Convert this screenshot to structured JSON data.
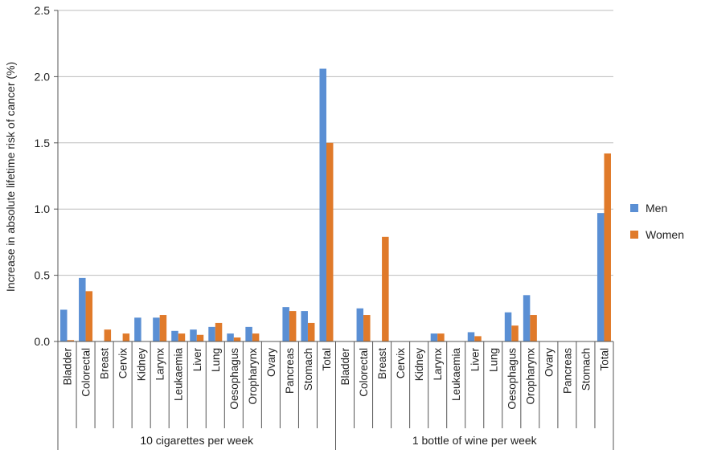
{
  "chart_data": {
    "type": "bar",
    "ylabel": "Increase in absolute lifetime risk of cancer (%)",
    "xlabel": "",
    "ylim": [
      0,
      2.5
    ],
    "yticks": [
      "0.0",
      "0.5",
      "1.0",
      "1.5",
      "2.0",
      "2.5"
    ],
    "grid": true,
    "legend_position": "right",
    "colors": {
      "Men": "#5a8fd4",
      "Women": "#e07a2a"
    },
    "groups": [
      {
        "label": "10 cigarettes per week",
        "categories": [
          "Bladder",
          "Colorectal",
          "Breast",
          "Cervix",
          "Kidney",
          "Larynx",
          "Leukaemia",
          "Liver",
          "Lung",
          "Oesophagus",
          "Oropharynx",
          "Ovary",
          "Pancreas",
          "Stomach",
          "Total"
        ],
        "series": [
          {
            "name": "Men",
            "values": [
              0.24,
              0.48,
              null,
              null,
              0.18,
              0.18,
              0.08,
              0.09,
              0.11,
              0.06,
              0.11,
              null,
              0.26,
              0.23,
              2.06
            ]
          },
          {
            "name": "Women",
            "values": [
              0.01,
              0.38,
              0.09,
              0.06,
              0.0,
              0.2,
              0.06,
              0.05,
              0.14,
              0.03,
              0.06,
              0.0,
              0.23,
              0.14,
              1.5
            ]
          }
        ]
      },
      {
        "label": "1 bottle of wine per week",
        "categories": [
          "Bladder",
          "Colorectal",
          "Breast",
          "Cervix",
          "Kidney",
          "Larynx",
          "Leukaemia",
          "Liver",
          "Lung",
          "Oesophagus",
          "Oropharynx",
          "Ovary",
          "Pancreas",
          "Stomach",
          "Total"
        ],
        "series": [
          {
            "name": "Men",
            "values": [
              0.0,
              0.25,
              null,
              null,
              0.0,
              0.06,
              0.0,
              0.07,
              0.0,
              0.22,
              0.35,
              null,
              0.0,
              0.0,
              0.97
            ]
          },
          {
            "name": "Women",
            "values": [
              0.0,
              0.2,
              0.79,
              0.0,
              0.0,
              0.06,
              0.0,
              0.04,
              0.0,
              0.12,
              0.2,
              0.0,
              0.0,
              0.0,
              1.42
            ]
          }
        ]
      }
    ],
    "legend": [
      "Men",
      "Women"
    ]
  }
}
